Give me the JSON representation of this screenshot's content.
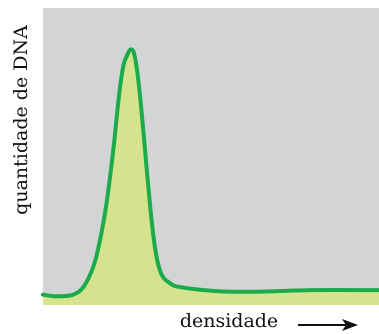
{
  "chart_data": {
    "type": "area",
    "title": "",
    "xlabel": "densidade",
    "ylabel": "quantidade de DNA",
    "grid": false,
    "legend": "none",
    "xlim": [
      0,
      100
    ],
    "ylim": [
      0,
      100
    ],
    "series": [
      {
        "x": [
          0,
          3,
          6,
          9,
          12,
          15,
          17,
          19,
          21,
          22,
          23,
          24,
          25,
          26,
          27,
          28,
          29,
          30,
          31,
          32,
          33,
          34,
          35,
          36,
          37,
          39,
          41,
          44,
          48,
          55,
          65,
          80,
          100
        ],
        "y": [
          3.5,
          3,
          3,
          3.5,
          6,
          13,
          22,
          35,
          53,
          64,
          74,
          81,
          84,
          86,
          85,
          79,
          69,
          57,
          44,
          32,
          22,
          15,
          11,
          9,
          8,
          6.5,
          6,
          5.5,
          5,
          4.5,
          4.5,
          5,
          5
        ]
      }
    ],
    "colors": {
      "plot_background": "#d3d4d6",
      "line": "#1cab4b",
      "fill": "#d5e38f",
      "text": "#111111"
    }
  }
}
